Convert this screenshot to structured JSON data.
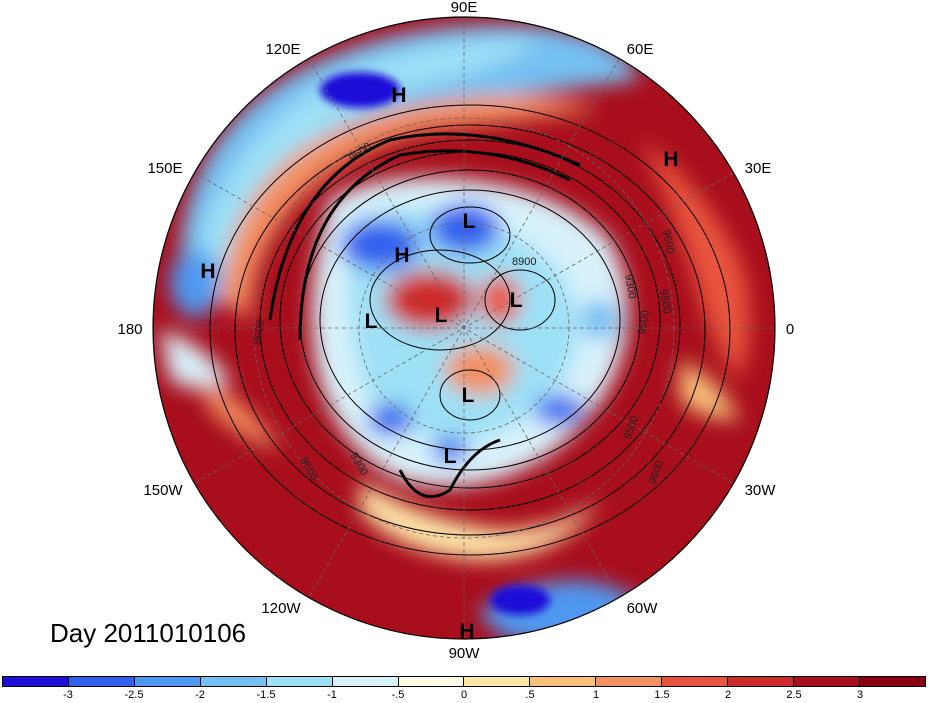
{
  "day_label": "Day 2011010106",
  "longitude_labels": [
    "90E",
    "60E",
    "30E",
    "0",
    "30W",
    "60W",
    "90W",
    "120W",
    "150W",
    "180",
    "150E",
    "120E"
  ],
  "contour_labels": [
    "9600",
    "8900",
    "9300",
    "9500",
    "9600",
    "9500",
    "9600",
    "9500",
    "9300",
    "9500",
    "9600"
  ],
  "highs_lows": [
    "H",
    "H",
    "H",
    "H",
    "H",
    "L",
    "L",
    "L",
    "L",
    "L",
    "L"
  ],
  "colorbar": {
    "tick_labels": [
      "-3",
      "-2.5",
      "-2",
      "-1.5",
      "-1",
      "-.5",
      "0",
      ".5",
      "1",
      "1.5",
      "2",
      "2.5",
      "3"
    ],
    "colors": [
      "#1e10d8",
      "#3260ee",
      "#4f98f0",
      "#74c0f2",
      "#9ee0f6",
      "#d8f2fb",
      "#fdfbe3",
      "#fde6a8",
      "#f8c27a",
      "#f29060",
      "#e8543e",
      "#cf2a2a",
      "#a80e1c",
      "#8a0012"
    ]
  }
}
